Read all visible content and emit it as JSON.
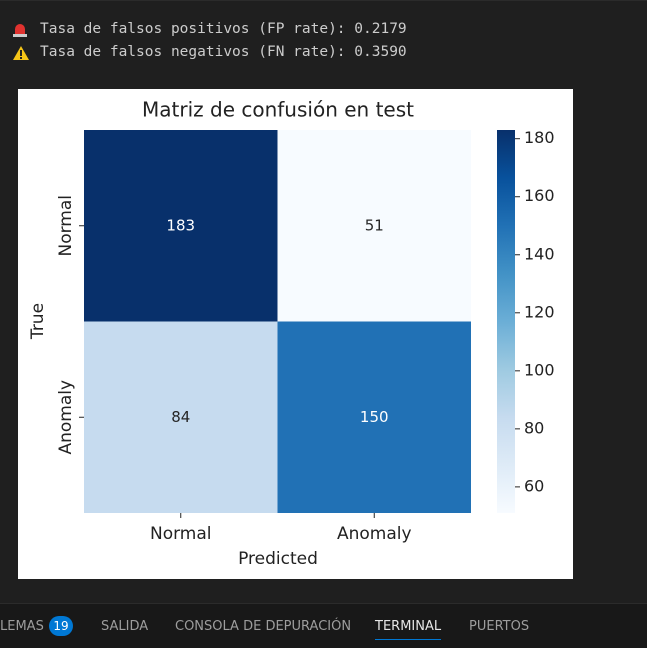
{
  "terminal": {
    "lines": [
      "Tasa de falsos positivos (FP rate): 0.2179",
      "Tasa de falsos negativos (FN rate): 0.3590"
    ]
  },
  "chart_data": {
    "type": "heatmap",
    "title": "Matriz de confusión en test",
    "x_label": "Predicted",
    "y_label": "True",
    "x_categories": [
      "Normal",
      "Anomaly"
    ],
    "y_categories": [
      "Normal",
      "Anomaly"
    ],
    "values": [
      [
        183,
        51
      ],
      [
        84,
        150
      ]
    ],
    "colormap": "Blues",
    "colorbar_lim": [
      51,
      183
    ],
    "colorbar_ticks": [
      60,
      80,
      100,
      120,
      140,
      160,
      180
    ]
  },
  "panel": {
    "tabs": [
      "LEMAS",
      "SALIDA",
      "CONSOLA DE DEPURACIÓN",
      "TERMINAL",
      "PUERTOS"
    ],
    "badge": 19
  }
}
